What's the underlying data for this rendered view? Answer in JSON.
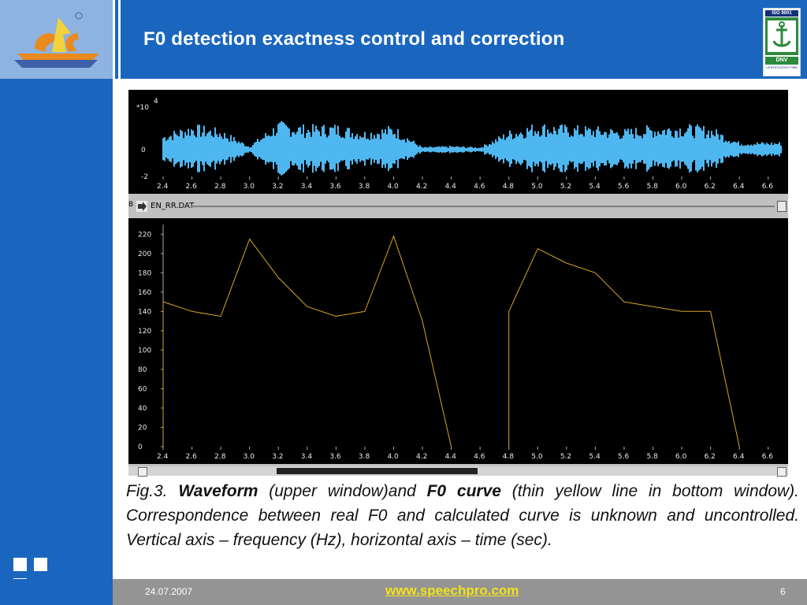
{
  "slide": {
    "title": "F0 detection exactness control and correction",
    "date": "24.07.2007",
    "url": "www.speechpro.com",
    "page": "6"
  },
  "logos": {
    "left": "stc-logo",
    "right": "iso-9001-dnv-certified-logo",
    "cert_top": "ISO 9001",
    "cert_mid": "DNV",
    "cert_bottom": "CERTIFICATED FIRM"
  },
  "figure": {
    "file_name": "EN_RR.DAT",
    "side_letter": "B",
    "waveform": {
      "y_scale_label": "*10",
      "y_scale_exp": "4",
      "y_ticks": [
        "0",
        "-2"
      ],
      "x_ticks": [
        "2.4",
        "2.6",
        "2.8",
        "3.0",
        "3.2",
        "3.4",
        "3.6",
        "3.8",
        "4.0",
        "4.2",
        "4.4",
        "4.6",
        "4.8",
        "5.0",
        "5.2",
        "5.4",
        "5.6",
        "5.8",
        "6.0",
        "6.2",
        "6.4",
        "6.6"
      ],
      "color": "#4fb7f0"
    },
    "f0_window": {
      "y_ticks": [
        "220",
        "200",
        "180",
        "160",
        "140",
        "120",
        "100",
        "80",
        "60",
        "40",
        "20",
        "0"
      ],
      "x_ticks": [
        "2.4",
        "2.6",
        "2.8",
        "3.0",
        "3.2",
        "3.4",
        "3.6",
        "3.8",
        "4.0",
        "4.2",
        "4.4",
        "4.6",
        "4.8",
        "5.0",
        "5.2",
        "5.4",
        "5.6",
        "5.8",
        "6.0",
        "6.2",
        "6.4",
        "6.6"
      ],
      "color": "#d9a520"
    }
  },
  "caption": {
    "prefix": "Fig.3. ",
    "term1": "Waveform",
    "mid1": " (upper window)and  ",
    "term2": "F0 curve",
    "rest": " (thin yellow line in bottom window). Correspondence between real F0 and calculated curve is unknown and uncontrolled. Vertical axis – frequency (Hz), horizontal axis – time (sec)."
  },
  "chart_data": [
    {
      "type": "area",
      "title": "",
      "xlabel": "",
      "ylabel": "",
      "y_scale_label": "*10 4",
      "x": [
        2.4,
        2.6,
        2.8,
        3.0,
        3.2,
        3.4,
        3.6,
        3.8,
        4.0,
        4.2,
        4.4,
        4.6,
        4.8,
        5.0,
        5.2,
        5.4,
        5.6,
        5.8,
        6.0,
        6.2,
        6.4,
        6.6
      ],
      "xlim": [
        2.4,
        6.7
      ],
      "ylim": [
        -2,
        4
      ],
      "series": [
        {
          "values": [
            1.2,
            2.0,
            1.6,
            0.3,
            2.2,
            1.9,
            2.0,
            1.5,
            1.9,
            0.2,
            0.3,
            0.2,
            1.5,
            2.1,
            1.9,
            1.8,
            1.6,
            1.9,
            2.0,
            1.8,
            0.6,
            0.6
          ]
        }
      ]
    },
    {
      "type": "line",
      "title": "",
      "xlabel": "",
      "ylabel": "",
      "x": [
        2.4,
        2.6,
        2.8,
        3.0,
        3.2,
        3.4,
        3.6,
        3.8,
        4.0,
        4.2,
        4.4,
        4.6,
        4.8,
        5.0,
        5.2,
        5.4,
        5.6,
        5.8,
        6.0,
        6.2,
        6.4,
        6.6
      ],
      "xlim": [
        2.4,
        6.7
      ],
      "ylim": [
        0,
        230
      ],
      "series": [
        {
          "values": [
            150,
            140,
            135,
            215,
            175,
            145,
            135,
            140,
            218,
            130,
            0,
            0,
            140,
            205,
            190,
            180,
            150,
            145,
            140,
            140,
            0,
            0
          ]
        }
      ]
    }
  ]
}
